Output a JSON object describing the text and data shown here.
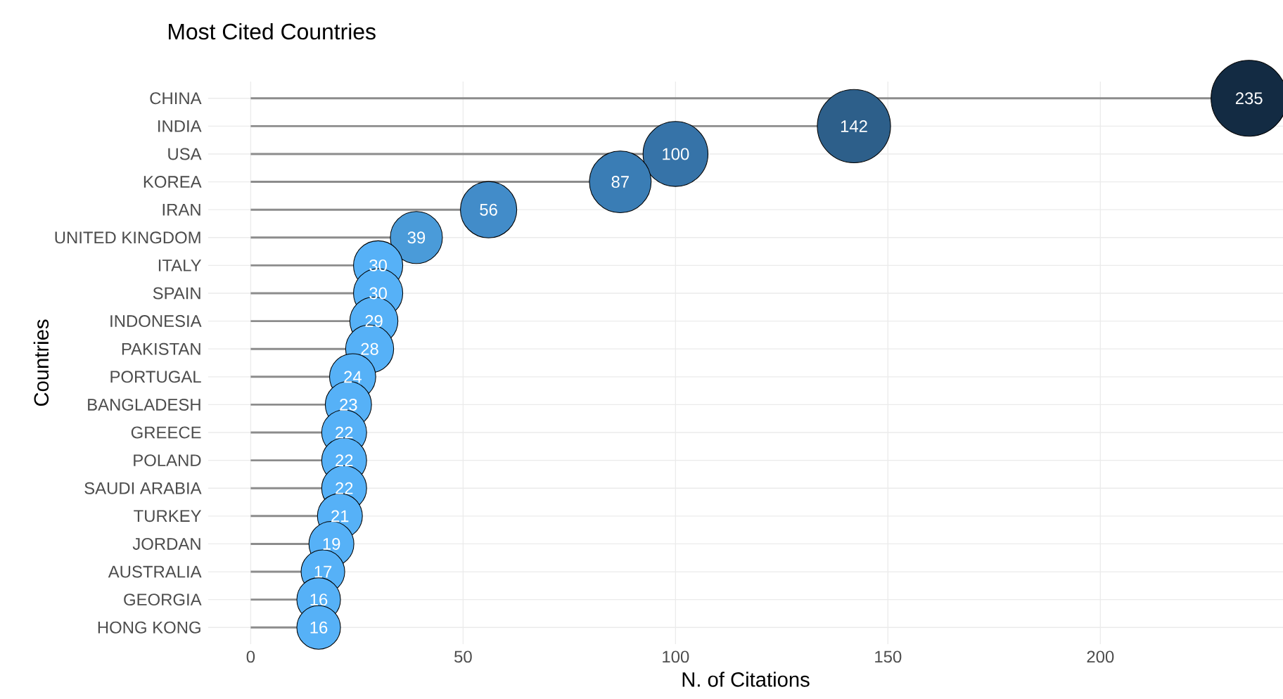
{
  "chart_data": {
    "type": "lollipop",
    "title": "Most Cited Countries",
    "xlabel": "N. of Citations",
    "ylabel": "Countries",
    "orientation": "horizontal",
    "marker": "circle",
    "grid": true,
    "data_labels": true,
    "categories": [
      "CHINA",
      "INDIA",
      "USA",
      "KOREA",
      "IRAN",
      "UNITED KINGDOM",
      "ITALY",
      "SPAIN",
      "INDONESIA",
      "PAKISTAN",
      "PORTUGAL",
      "BANGLADESH",
      "GREECE",
      "POLAND",
      "SAUDI ARABIA",
      "TURKEY",
      "JORDAN",
      "AUSTRALIA",
      "GEORGIA",
      "HONG KONG"
    ],
    "values": [
      235,
      142,
      100,
      87,
      56,
      39,
      30,
      30,
      29,
      28,
      24,
      23,
      22,
      22,
      22,
      21,
      19,
      17,
      16,
      16
    ],
    "colors": [
      "#132b43",
      "#2d5f8a",
      "#3673a8",
      "#3a7db5",
      "#428cc9",
      "#4a9bd9",
      "#56b1f7",
      "#56b1f7",
      "#56b1f7",
      "#56b1f7",
      "#56b1f7",
      "#56b1f7",
      "#56b1f7",
      "#56b1f7",
      "#56b1f7",
      "#56b1f7",
      "#56b1f7",
      "#56b1f7",
      "#56b1f7",
      "#56b1f7"
    ],
    "sizes": [
      1,
      0.93,
      0.73,
      0.66,
      0.55,
      0.47,
      0.42,
      0.42,
      0.4,
      0.4,
      0.37,
      0.37,
      0.35,
      0.35,
      0.35,
      0.35,
      0.35,
      0.33,
      0.33,
      0.33
    ],
    "xlim": [
      -10,
      243
    ],
    "xticks": [
      0,
      50,
      100,
      150,
      200
    ]
  }
}
